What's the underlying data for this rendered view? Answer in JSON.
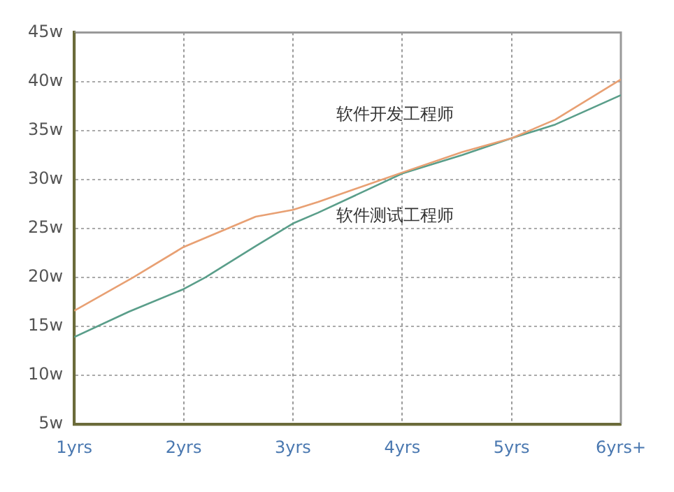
{
  "chart_data": {
    "type": "line",
    "xlim": [
      1,
      6
    ],
    "xticks": [
      {
        "value": 1,
        "label": "1yrs"
      },
      {
        "value": 2,
        "label": "2yrs"
      },
      {
        "value": 3,
        "label": "3yrs"
      },
      {
        "value": 4,
        "label": "4yrs"
      },
      {
        "value": 5,
        "label": "5yrs"
      },
      {
        "value": 6,
        "label": "6yrs+"
      }
    ],
    "ylim": [
      5,
      45
    ],
    "yticks": [
      {
        "value": 5,
        "label": "5w"
      },
      {
        "value": 10,
        "label": "10w"
      },
      {
        "value": 15,
        "label": "15w"
      },
      {
        "value": 20,
        "label": "20w"
      },
      {
        "value": 25,
        "label": "25w"
      },
      {
        "value": 30,
        "label": "30w"
      },
      {
        "value": 35,
        "label": "35w"
      },
      {
        "value": 40,
        "label": "40w"
      },
      {
        "value": 45,
        "label": "45w"
      }
    ],
    "series": [
      {
        "name": "软件开发工程师",
        "color": "#e8a073",
        "x": [
          1,
          1.54,
          2,
          2.66,
          3,
          3.23,
          4,
          4.55,
          5,
          5.4,
          6
        ],
        "values": [
          16.6,
          20,
          23.1,
          26.2,
          26.9,
          27.7,
          30.7,
          32.8,
          34.2,
          36.1,
          40.2
        ]
      },
      {
        "name": "软件测试工程师",
        "color": "#5a9e8a",
        "x": [
          1,
          1.5,
          2,
          2.2,
          2.66,
          3,
          3.23,
          4,
          4.55,
          5,
          5.4,
          6
        ],
        "values": [
          13.9,
          16.5,
          18.8,
          20,
          23.2,
          25.5,
          26.6,
          30.6,
          32.5,
          34.2,
          35.6,
          38.6
        ]
      }
    ],
    "grid": true,
    "legend": false,
    "marker": "none",
    "line_style": "solid"
  }
}
